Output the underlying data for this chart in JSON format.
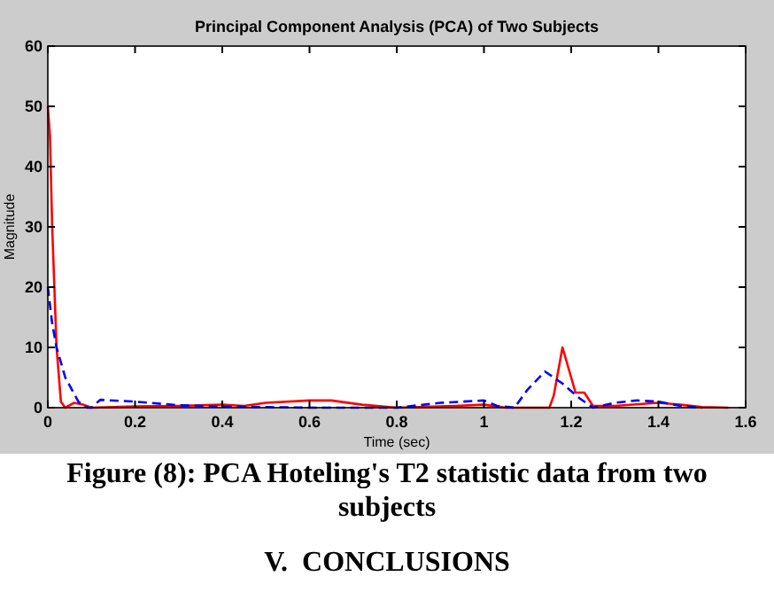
{
  "chart_data": {
    "type": "line",
    "title": "Principal Component Analysis (PCA) of Two Subjects",
    "xlabel": "Time (sec)",
    "ylabel": "Magnitude",
    "annotations": [
      "Figure (8): PCA Hoteling's T2 statistic data from two subjects",
      "V.  CONCLUSIONS"
    ],
    "xlim": [
      0,
      1.6
    ],
    "xticks": [
      0,
      0.2,
      0.4,
      0.6,
      0.8,
      1,
      1.2,
      1.4,
      1.6
    ],
    "ylim": [
      0,
      60
    ],
    "yticks": [
      0,
      10,
      20,
      30,
      40,
      50,
      60
    ],
    "grid": false,
    "series": [
      {
        "color": "#ff0000",
        "line_style": "solid",
        "x": [
          0,
          0.005,
          0.01,
          0.02,
          0.03,
          0.04,
          0.06,
          0.08,
          0.1,
          0.2,
          0.3,
          0.4,
          0.45,
          0.5,
          0.6,
          0.65,
          0.72,
          0.8,
          0.9,
          1.0,
          1.05,
          1.15,
          1.16,
          1.18,
          1.2,
          1.21,
          1.23,
          1.25,
          1.3,
          1.4,
          1.45,
          1.5,
          1.56
        ],
        "values": [
          50,
          45,
          30,
          10,
          1,
          0,
          0.8,
          0.5,
          0,
          0.2,
          0.3,
          0.5,
          0.3,
          0.8,
          1.2,
          1.2,
          0.5,
          0,
          0.2,
          0.5,
          0,
          0,
          2,
          10,
          5,
          2.5,
          2.5,
          0.3,
          0.3,
          0.8,
          0.5,
          0.1,
          0
        ]
      },
      {
        "color": "#0000ff",
        "line_style": "dashed",
        "x": [
          0,
          0.01,
          0.02,
          0.04,
          0.07,
          0.09,
          0.1,
          0.12,
          0.2,
          0.3,
          0.4,
          0.5,
          0.6,
          0.8,
          0.9,
          1.0,
          1.03,
          1.07,
          1.1,
          1.14,
          1.18,
          1.22,
          1.25,
          1.3,
          1.35,
          1.4,
          1.45,
          1.5
        ],
        "values": [
          20,
          14,
          10,
          5,
          1,
          0,
          0,
          1.3,
          1,
          0.4,
          0.2,
          0.1,
          0,
          0,
          0.8,
          1.2,
          0.3,
          0,
          3,
          6,
          4,
          1.5,
          0,
          0.8,
          1.2,
          1,
          0.3,
          0
        ]
      }
    ]
  }
}
